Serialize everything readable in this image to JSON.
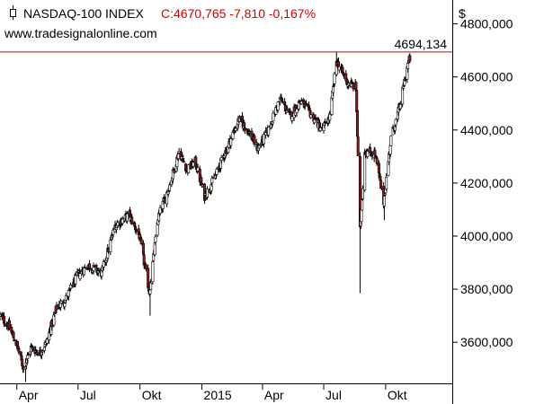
{
  "header": {
    "instrument": "NASDAQ-100 INDEX",
    "quote": "C:4670,765 -7,810 -0,167%",
    "source": "www.tradesignalonline.com",
    "currency_symbol": "$",
    "instrument_icon": "candlestick-chart-icon"
  },
  "colors": {
    "quote": "#d60000",
    "reference_line": "#cc0000",
    "up_candle_body": "#ffffff",
    "down_candle_body": "#8b1a1a",
    "axis": "#000000"
  },
  "chart_data": {
    "type": "candlestick",
    "title": "NASDAQ-100 INDEX",
    "reference_line": {
      "value": 4694.134,
      "label": "4694,134"
    },
    "y_ticks": [
      {
        "value": 3600,
        "label": "3600,000"
      },
      {
        "value": 3800,
        "label": "3800,000"
      },
      {
        "value": 4000,
        "label": "4000,000"
      },
      {
        "value": 4200,
        "label": "4200,000"
      },
      {
        "value": 4400,
        "label": "4400,000"
      },
      {
        "value": 4600,
        "label": "4600,000"
      },
      {
        "value": 4800,
        "label": "4800,000"
      }
    ],
    "x_ticks": [
      {
        "date": "2014-04-01",
        "label": "Apr"
      },
      {
        "date": "2014-07-01",
        "label": "Jul"
      },
      {
        "date": "2014-10-01",
        "label": "Okt"
      },
      {
        "date": "2015-01-01",
        "label": "2015"
      },
      {
        "date": "2015-04-01",
        "label": "Apr"
      },
      {
        "date": "2015-07-01",
        "label": "Jul"
      },
      {
        "date": "2015-10-01",
        "label": "Okt"
      }
    ],
    "x_range": [
      "2014-03-07",
      "2016-01-08"
    ],
    "y_range": [
      3445,
      4890
    ],
    "grid": false,
    "anchors": [
      [
        "2014-03-07",
        3700
      ],
      [
        "2014-03-20",
        3660
      ],
      [
        "2014-04-01",
        3590
      ],
      [
        "2014-04-11",
        3500
      ],
      [
        "2014-04-22",
        3580
      ],
      [
        "2014-05-05",
        3560
      ],
      [
        "2014-05-15",
        3600
      ],
      [
        "2014-05-30",
        3730
      ],
      [
        "2014-06-12",
        3760
      ],
      [
        "2014-06-30",
        3850
      ],
      [
        "2014-07-15",
        3890
      ],
      [
        "2014-08-05",
        3860
      ],
      [
        "2014-08-25",
        4040
      ],
      [
        "2014-09-15",
        4080
      ],
      [
        "2014-09-30",
        4000
      ],
      [
        "2014-10-15",
        3790
      ],
      [
        "2014-10-28",
        4070
      ],
      [
        "2014-11-15",
        4200
      ],
      [
        "2014-11-28",
        4320
      ],
      [
        "2014-12-10",
        4250
      ],
      [
        "2014-12-22",
        4280
      ],
      [
        "2015-01-05",
        4150
      ],
      [
        "2015-01-20",
        4220
      ],
      [
        "2015-02-10",
        4350
      ],
      [
        "2015-02-25",
        4440
      ],
      [
        "2015-03-10",
        4400
      ],
      [
        "2015-03-25",
        4330
      ],
      [
        "2015-04-10",
        4400
      ],
      [
        "2015-04-27",
        4520
      ],
      [
        "2015-05-12",
        4450
      ],
      [
        "2015-05-27",
        4510
      ],
      [
        "2015-06-15",
        4450
      ],
      [
        "2015-06-29",
        4400
      ],
      [
        "2015-07-10",
        4450
      ],
      [
        "2015-07-20",
        4660
      ],
      [
        "2015-08-05",
        4580
      ],
      [
        "2015-08-18",
        4560
      ],
      [
        "2015-08-24",
        4020
      ],
      [
        "2015-08-31",
        4320
      ],
      [
        "2015-09-15",
        4310
      ],
      [
        "2015-09-28",
        4130
      ],
      [
        "2015-10-09",
        4370
      ],
      [
        "2015-10-22",
        4490
      ],
      [
        "2015-11-02",
        4640
      ],
      [
        "2015-11-06",
        4670
      ]
    ],
    "extremes": [
      {
        "date": "2014-04-14",
        "high": 3540,
        "low": 3450
      },
      {
        "date": "2014-10-16",
        "high": 3830,
        "low": 3700
      },
      {
        "date": "2015-07-20",
        "high": 4694,
        "low": 4640
      },
      {
        "date": "2015-08-24",
        "high": 4220,
        "low": 3785
      },
      {
        "date": "2015-09-29",
        "high": 4180,
        "low": 4060
      }
    ]
  }
}
